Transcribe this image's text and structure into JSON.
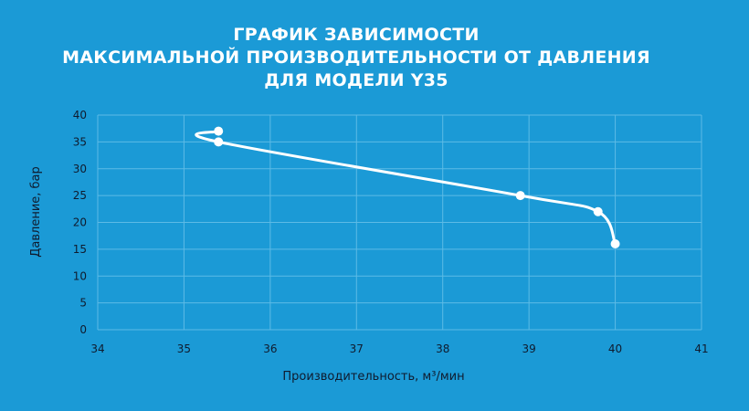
{
  "chart_data": {
    "type": "line",
    "title_lines": [
      "ГРАФИК ЗАВИСИМОСТИ",
      "МАКСИМАЛЬНОЙ ПРОИЗВОДИТЕЛЬНОСТИ ОТ ДАВЛЕНИЯ",
      "ДЛЯ МОДЕЛИ Y35"
    ],
    "xlabel": "Производительность, м³/мин",
    "ylabel": "Давление, бар",
    "xlim": [
      34,
      41
    ],
    "ylim": [
      0,
      40
    ],
    "x_ticks": [
      "34",
      "35",
      "36",
      "37",
      "38",
      "39",
      "40",
      "41"
    ],
    "y_ticks": [
      "0",
      "5",
      "10",
      "15",
      "20",
      "25",
      "30",
      "35",
      "40"
    ],
    "grid": true,
    "series": [
      {
        "x": [
          35.4,
          35.4,
          38.9,
          39.8,
          40.0
        ],
        "y": [
          37,
          35,
          25,
          22,
          16
        ]
      }
    ],
    "colors": {
      "background": "#1b9ad6",
      "line": "#ffffff",
      "grid": "#5dbbe6",
      "title": "#ffffff",
      "tick_text": "#0f1b2e"
    }
  }
}
